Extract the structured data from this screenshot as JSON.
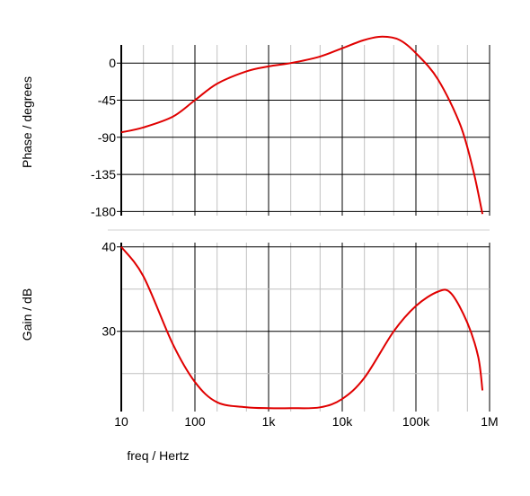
{
  "chart_data": [
    {
      "type": "line",
      "name": "phase",
      "xlabel": "",
      "ylabel": "Phase / degrees",
      "x_scale": "log",
      "x_major_ticks": [
        10,
        100,
        1000,
        10000,
        100000,
        1000000
      ],
      "xlim": [
        10,
        1000000
      ],
      "ylim": [
        -185,
        22
      ],
      "y_ticks": [
        0,
        -45,
        -90,
        -135,
        -180
      ],
      "y_tick_labels": [
        "0",
        "-45",
        "-90",
        "-135",
        "-180"
      ],
      "grid": true,
      "series": [
        {
          "color": "#e00000",
          "x": [
            10,
            20,
            50,
            100,
            200,
            500,
            1000,
            2000,
            5000,
            10000,
            20000,
            35000,
            60000,
            100000,
            200000,
            400000,
            600000,
            800000
          ],
          "y": [
            -84,
            -78,
            -65,
            -45,
            -25,
            -10,
            -4,
            0,
            8,
            18,
            28,
            32,
            28,
            12,
            -20,
            -75,
            -130,
            -183
          ]
        }
      ]
    },
    {
      "type": "line",
      "name": "gain",
      "xlabel": "freq / Hertz",
      "ylabel": "Gain / dB",
      "x_scale": "log",
      "x_major_ticks": [
        10,
        100,
        1000,
        10000,
        100000,
        1000000
      ],
      "x_tick_labels": [
        "10",
        "100",
        "1k",
        "10k",
        "100k",
        "1M"
      ],
      "xlim": [
        10,
        1000000
      ],
      "ylim": [
        20.5,
        40.5
      ],
      "y_ticks": [
        40,
        30
      ],
      "y_tick_labels": [
        "40",
        "30"
      ],
      "grid": true,
      "series": [
        {
          "color": "#e00000",
          "x": [
            10,
            20,
            50,
            100,
            200,
            500,
            1000,
            2000,
            5000,
            10000,
            20000,
            50000,
            100000,
            200000,
            300000,
            500000,
            700000,
            800000
          ],
          "y": [
            40,
            36.5,
            28.5,
            24,
            21.6,
            21,
            20.9,
            20.9,
            21,
            22,
            24.5,
            30,
            33,
            34.7,
            34.5,
            31,
            27,
            23
          ]
        }
      ]
    }
  ]
}
